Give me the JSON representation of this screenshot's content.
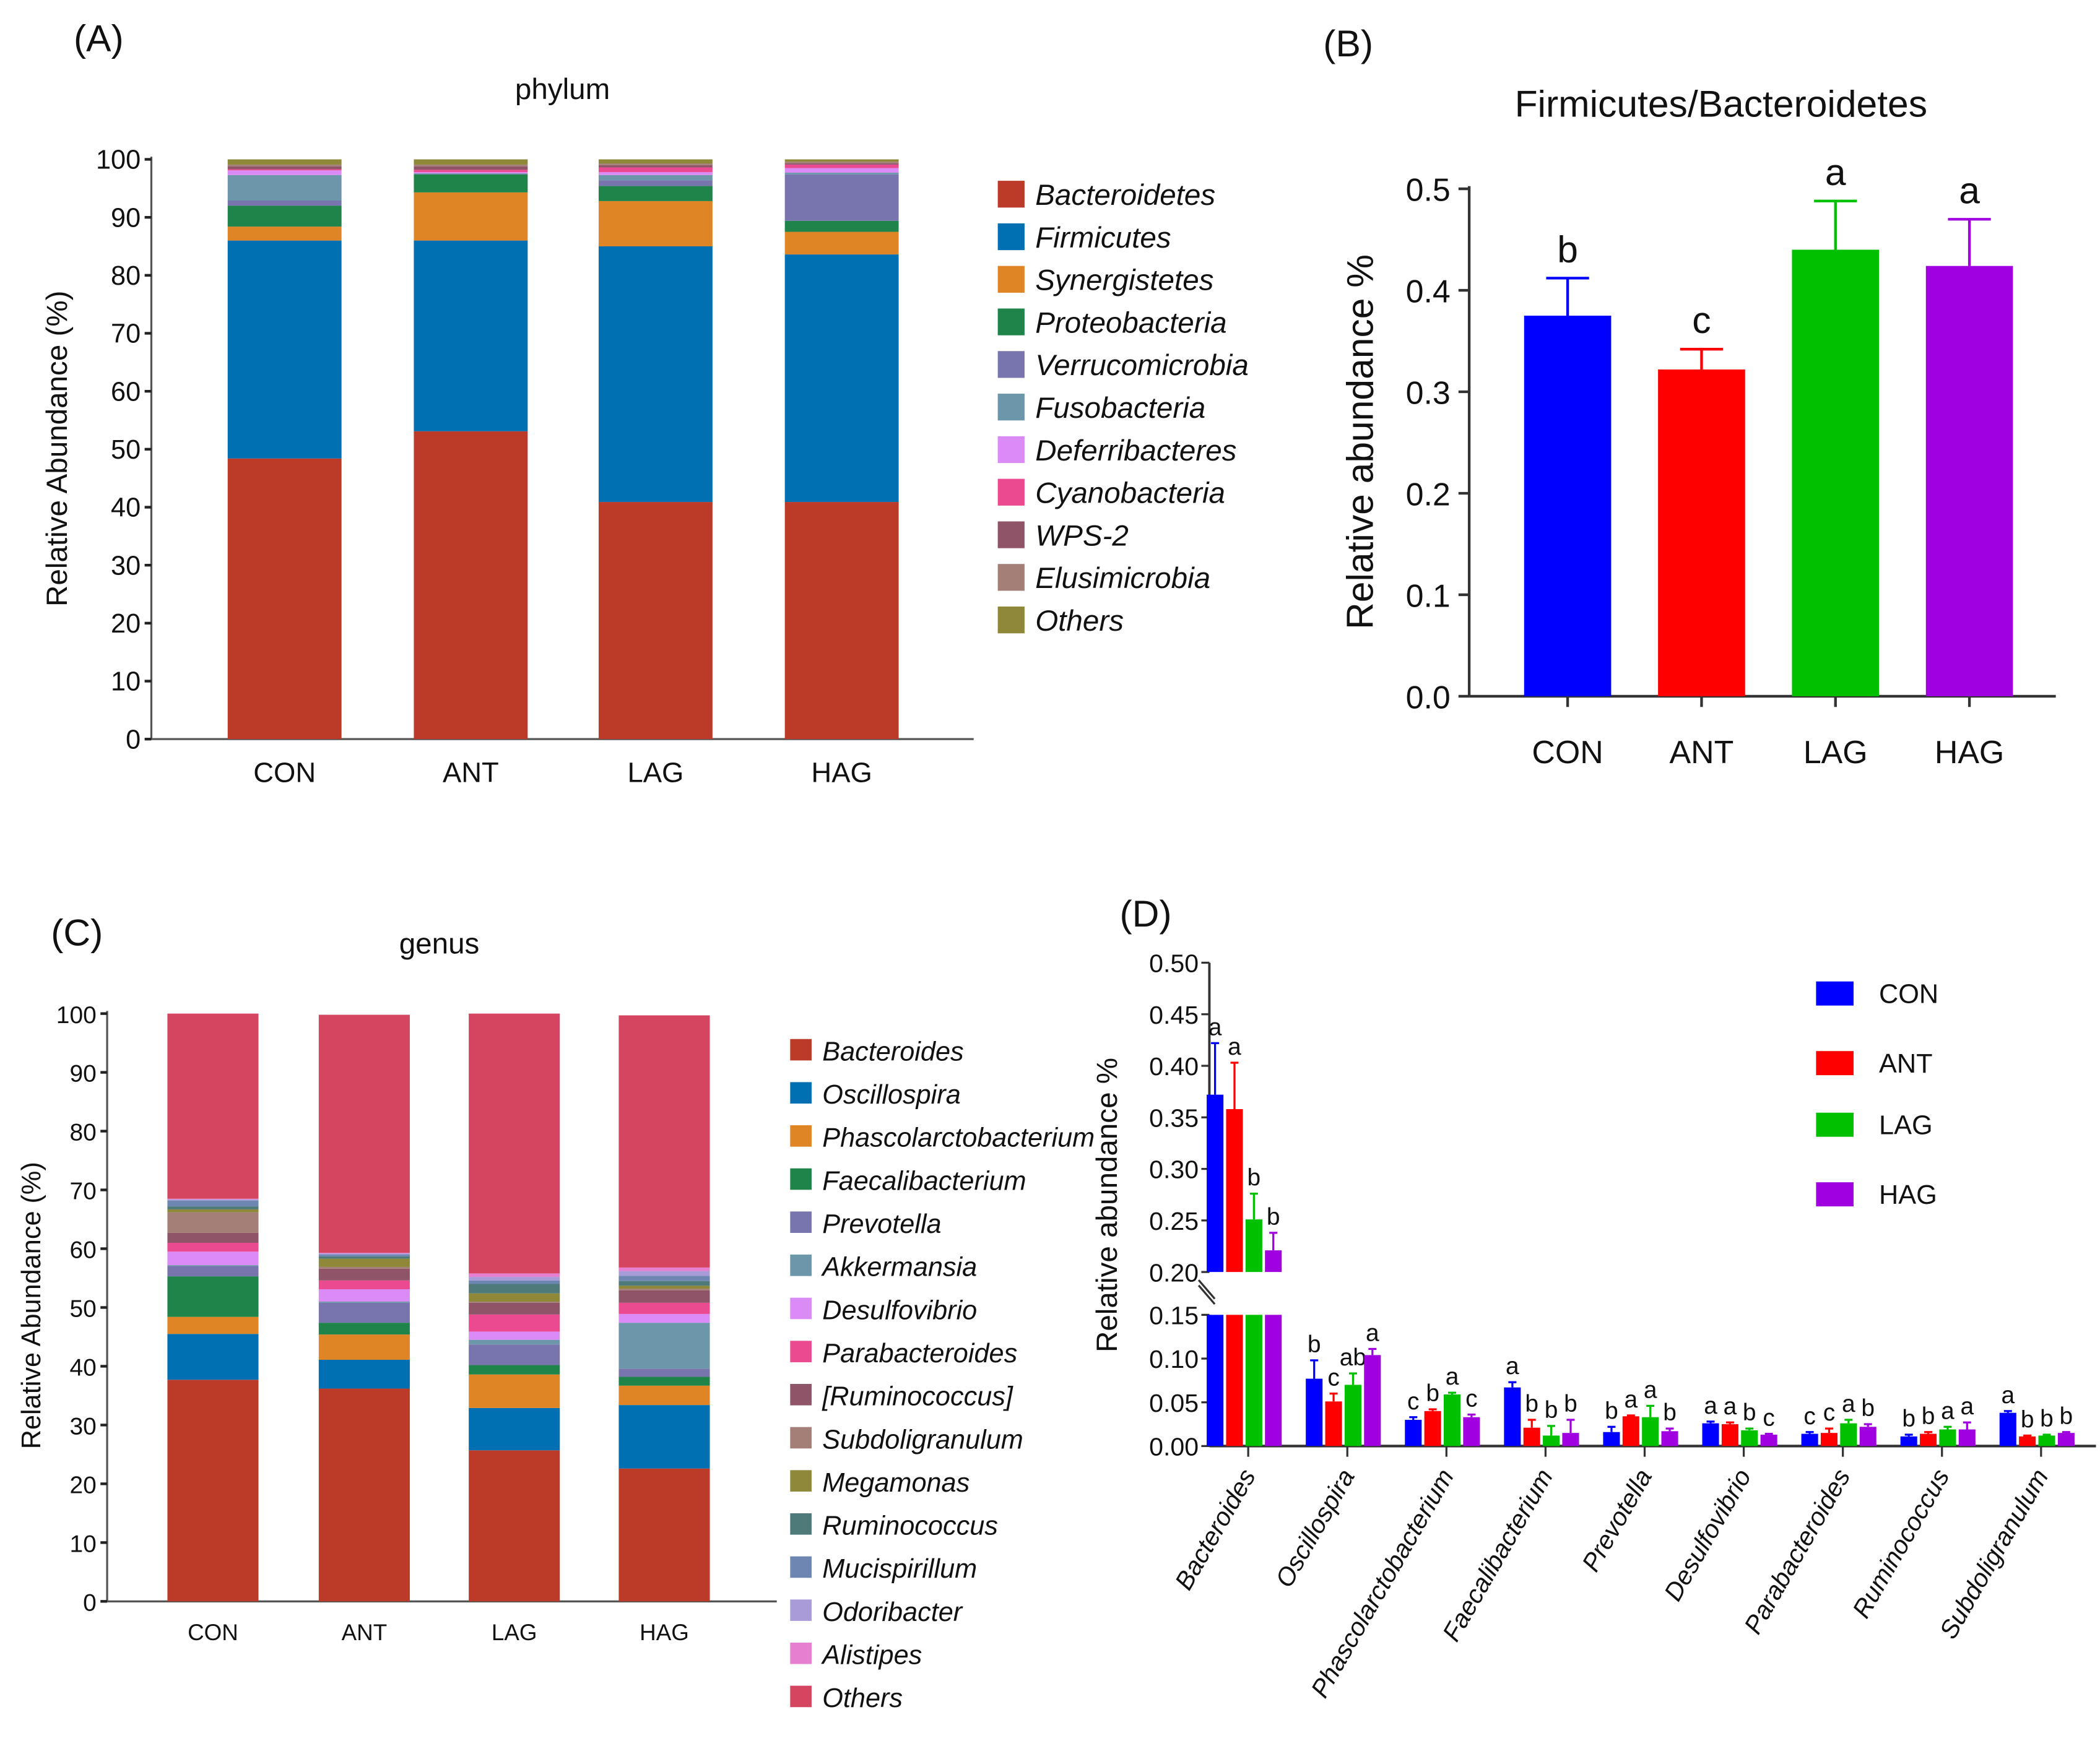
{
  "chart_data": [
    {
      "panel": "(A)",
      "type": "bar",
      "stacked": true,
      "title": "phylum",
      "xlabel": "",
      "ylabel": "Relative Abundance (%)",
      "ylim": [
        0,
        100
      ],
      "yticks": [
        0,
        10,
        20,
        30,
        40,
        50,
        60,
        70,
        80,
        90,
        100
      ],
      "categories": [
        "CON",
        "ANT",
        "LAG",
        "HAG"
      ],
      "legend_position": "right",
      "series": [
        {
          "name": "Bacteroidetes",
          "color": "#BC3B28",
          "values": [
            48.4,
            53.1,
            40.9,
            40.9
          ]
        },
        {
          "name": "Firmicutes",
          "color": "#0070B3",
          "values": [
            37.6,
            32.9,
            44.1,
            42.7
          ]
        },
        {
          "name": "Synergistetes",
          "color": "#E08526",
          "values": [
            2.4,
            8.3,
            7.8,
            3.9
          ]
        },
        {
          "name": "Proteobacteria",
          "color": "#1E8449",
          "values": [
            3.6,
            3.1,
            2.6,
            1.9
          ]
        },
        {
          "name": "Verrucomicrobia",
          "color": "#7874AD",
          "values": [
            0.9,
            0.1,
            1.0,
            8.0
          ]
        },
        {
          "name": "Fusobacteria",
          "color": "#6C97AB",
          "values": [
            4.4,
            0.1,
            0.9,
            0.3
          ]
        },
        {
          "name": "Deferribacteres",
          "color": "#DB8BF5",
          "values": [
            0.8,
            0.2,
            0.5,
            0.8
          ]
        },
        {
          "name": "Cyanobacteria",
          "color": "#EC4A90",
          "values": [
            0.2,
            0.4,
            0.8,
            0.6
          ]
        },
        {
          "name": "WPS-2",
          "color": "#8F5468",
          "values": [
            0.5,
            0.6,
            0.4,
            0.2
          ]
        },
        {
          "name": "Elusimicrobia",
          "color": "#A47F77",
          "values": [
            0.3,
            0.3,
            0.3,
            0.3
          ]
        },
        {
          "name": "Others",
          "color": "#8E8838",
          "values": [
            0.9,
            0.9,
            0.7,
            0.4
          ]
        }
      ]
    },
    {
      "panel": "(B)",
      "type": "bar",
      "title": "Firmicutes/Bacteroidetes",
      "xlabel": "",
      "ylabel": "Relative abundance %",
      "ylim": [
        0,
        0.5
      ],
      "yticks": [
        "0.0",
        "0.1",
        "0.2",
        "0.3",
        "0.4",
        "0.5"
      ],
      "categories": [
        "CON",
        "ANT",
        "LAG",
        "HAG"
      ],
      "values": [
        0.375,
        0.322,
        0.44,
        0.424
      ],
      "errors": [
        0.037,
        0.02,
        0.048,
        0.046
      ],
      "letters": [
        "b",
        "c",
        "a",
        "a"
      ],
      "colors": [
        "#0000FF",
        "#FF0000",
        "#00C000",
        "#A000E0"
      ]
    },
    {
      "panel": "(C)",
      "type": "bar",
      "stacked": true,
      "title": "genus",
      "xlabel": "",
      "ylabel": "Relative Abundance (%)",
      "ylim": [
        0,
        100
      ],
      "yticks": [
        0,
        10,
        20,
        30,
        40,
        50,
        60,
        70,
        80,
        90,
        100
      ],
      "categories": [
        "CON",
        "ANT",
        "LAG",
        "HAG"
      ],
      "legend_position": "right",
      "series": [
        {
          "name": "Bacteroides",
          "color": "#BC3B28",
          "values": [
            37.7,
            36.2,
            25.7,
            22.6
          ]
        },
        {
          "name": "Oscillospira",
          "color": "#0070B3",
          "values": [
            7.8,
            4.9,
            7.2,
            10.8
          ]
        },
        {
          "name": "Phascolarctobacterium",
          "color": "#E08526",
          "values": [
            2.9,
            4.3,
            5.7,
            3.3
          ]
        },
        {
          "name": "Faecalibacterium",
          "color": "#1E8449",
          "values": [
            6.9,
            2.0,
            1.6,
            1.5
          ]
        },
        {
          "name": "Prevotella",
          "color": "#7874AD",
          "values": [
            1.7,
            3.4,
            3.5,
            1.4
          ]
        },
        {
          "name": "Akkermansia",
          "color": "#6C97AB",
          "values": [
            0.2,
            0.2,
            0.8,
            7.8
          ]
        },
        {
          "name": "Desulfovibrio",
          "color": "#DB8BF5",
          "values": [
            2.3,
            2.1,
            1.4,
            1.5
          ]
        },
        {
          "name": "Parabacteroides",
          "color": "#EC4A90",
          "values": [
            1.5,
            1.5,
            2.9,
            1.9
          ]
        },
        {
          "name": "[Ruminococcus]",
          "color": "#8F5468",
          "values": [
            1.7,
            2.0,
            2.0,
            2.1
          ]
        },
        {
          "name": "Subdoligranulum",
          "color": "#A47F77",
          "values": [
            3.5,
            0.3,
            0.2,
            0.3
          ]
        },
        {
          "name": "Megamonas",
          "color": "#8E8838",
          "values": [
            0.5,
            1.4,
            1.4,
            0.5
          ]
        },
        {
          "name": "Ruminococcus",
          "color": "#4F7A7A",
          "values": [
            0.5,
            0.4,
            1.6,
            0.8
          ]
        },
        {
          "name": "Mucispirillum",
          "color": "#6E86B2",
          "values": [
            1.0,
            0.3,
            0.6,
            0.9
          ]
        },
        {
          "name": "Odoribacter",
          "color": "#A99BD8",
          "values": [
            0.2,
            0.2,
            0.6,
            0.8
          ]
        },
        {
          "name": "Alistipes",
          "color": "#E67FD0",
          "values": [
            0.1,
            0.1,
            0.6,
            0.6
          ]
        },
        {
          "name": "Others",
          "color": "#D64560",
          "values": [
            31.5,
            40.5,
            44.2,
            42.9
          ]
        }
      ]
    },
    {
      "panel": "(D)",
      "type": "bar",
      "grouped": true,
      "title": "",
      "xlabel": "",
      "ylabel": "Relative abundance %",
      "ylim": [
        0,
        0.5
      ],
      "axis_break": [
        0.15,
        0.2
      ],
      "yticks_lower": [
        "0.00",
        "0.05",
        "0.10",
        "0.15"
      ],
      "yticks_upper": [
        "0.20",
        "0.25",
        "0.30",
        "0.35",
        "0.40",
        "0.45",
        "0.50"
      ],
      "categories": [
        "Bacteroides",
        "Oscillospira",
        "Phascolarctobacterium",
        "Faecalibacterium",
        "Prevotella",
        "Desulfovibrio",
        "Parabacteroides",
        "Ruminococcus",
        "Subdoligranulum"
      ],
      "legend_position": "top-right",
      "series": [
        {
          "name": "CON",
          "color": "#0000FF",
          "values": [
            0.372,
            0.077,
            0.03,
            0.067,
            0.016,
            0.026,
            0.014,
            0.011,
            0.038
          ],
          "errors": [
            0.05,
            0.021,
            0.003,
            0.006,
            0.006,
            0.002,
            0.002,
            0.002,
            0.002
          ],
          "letters": [
            "a",
            "b",
            "c",
            "a",
            "b",
            "a",
            "c",
            "b",
            "a"
          ]
        },
        {
          "name": "ANT",
          "color": "#FF0000",
          "values": [
            0.358,
            0.051,
            0.04,
            0.021,
            0.034,
            0.025,
            0.015,
            0.014,
            0.011
          ],
          "errors": [
            0.045,
            0.009,
            0.002,
            0.009,
            0.001,
            0.002,
            0.005,
            0.002,
            0.001
          ],
          "letters": [
            "a",
            "c",
            "b",
            "b",
            "a",
            "a",
            "c",
            "b",
            "b"
          ]
        },
        {
          "name": "LAG",
          "color": "#00C000",
          "values": [
            0.251,
            0.07,
            0.059,
            0.012,
            0.033,
            0.018,
            0.026,
            0.019,
            0.012
          ],
          "errors": [
            0.025,
            0.013,
            0.002,
            0.011,
            0.013,
            0.002,
            0.004,
            0.003,
            0.001
          ],
          "letters": [
            "b",
            "ab",
            "a",
            "b",
            "a",
            "b",
            "a",
            "a",
            "b"
          ]
        },
        {
          "name": "HAG",
          "color": "#A000E0",
          "values": [
            0.221,
            0.104,
            0.033,
            0.015,
            0.017,
            0.013,
            0.022,
            0.019,
            0.015
          ],
          "errors": [
            0.017,
            0.007,
            0.003,
            0.015,
            0.003,
            0.001,
            0.003,
            0.008,
            0.001
          ],
          "letters": [
            "b",
            "a",
            "c",
            "b",
            "b",
            "c",
            "b",
            "a",
            "b"
          ]
        }
      ]
    }
  ]
}
